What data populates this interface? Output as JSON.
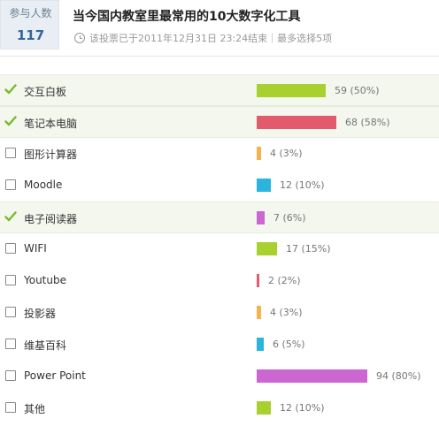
{
  "header": {
    "participants_label": "参与人数",
    "participants_count": "117",
    "title": "当今国内教室里最常用的10大数字化工具",
    "meta": "该投票已于2011年12月31日 23:24结束｜最多选择5项"
  },
  "colors": {
    "green": "#a8d02f",
    "red": "#e35a6c",
    "orange": "#f3b44f",
    "blue": "#2ab4de",
    "purple": "#cc66d3",
    "check": "#7ab82c"
  },
  "options": [
    {
      "label": "交互白板",
      "votes": 59,
      "percent": 50,
      "result": "59 (50%)",
      "checked": true,
      "color": "#a8d02f"
    },
    {
      "label": "笔记本电脑",
      "votes": 68,
      "percent": 58,
      "result": "68 (58%)",
      "checked": true,
      "color": "#e35a6c"
    },
    {
      "label": "图形计算器",
      "votes": 4,
      "percent": 3,
      "result": "4 (3%)",
      "checked": false,
      "color": "#f3b44f"
    },
    {
      "label": "Moodle",
      "votes": 12,
      "percent": 10,
      "result": "12 (10%)",
      "checked": false,
      "color": "#2ab4de"
    },
    {
      "label": "电子阅读器",
      "votes": 7,
      "percent": 6,
      "result": "7 (6%)",
      "checked": true,
      "color": "#cc66d3"
    },
    {
      "label": "WIFI",
      "votes": 17,
      "percent": 15,
      "result": "17 (15%)",
      "checked": false,
      "color": "#a8d02f"
    },
    {
      "label": "Youtube",
      "votes": 2,
      "percent": 2,
      "result": "2 (2%)",
      "checked": false,
      "color": "#e35a6c"
    },
    {
      "label": "投影器",
      "votes": 4,
      "percent": 3,
      "result": "4 (3%)",
      "checked": false,
      "color": "#f3b44f"
    },
    {
      "label": "维基百科",
      "votes": 6,
      "percent": 5,
      "result": "6 (5%)",
      "checked": false,
      "color": "#2ab4de"
    },
    {
      "label": "Power Point",
      "votes": 94,
      "percent": 80,
      "result": "94 (80%)",
      "checked": false,
      "color": "#cc66d3"
    },
    {
      "label": "其他",
      "votes": 12,
      "percent": 10,
      "result": "12 (10%)",
      "checked": false,
      "color": "#a8d02f"
    }
  ]
}
